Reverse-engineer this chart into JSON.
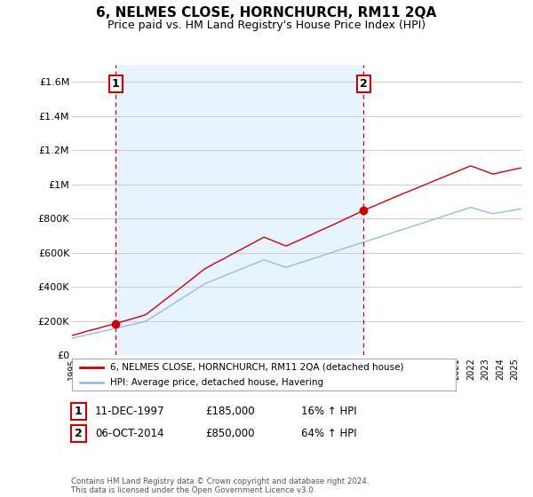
{
  "title": "6, NELMES CLOSE, HORNCHURCH, RM11 2QA",
  "subtitle": "Price paid vs. HM Land Registry's House Price Index (HPI)",
  "title_fontsize": 11,
  "subtitle_fontsize": 9,
  "ylabel_ticks": [
    "£0",
    "£200K",
    "£400K",
    "£600K",
    "£800K",
    "£1M",
    "£1.2M",
    "£1.4M",
    "£1.6M"
  ],
  "ytick_values": [
    0,
    200000,
    400000,
    600000,
    800000,
    1000000,
    1200000,
    1400000,
    1600000
  ],
  "ylim": [
    0,
    1700000
  ],
  "xlim_start": 1995.0,
  "xlim_end": 2025.5,
  "transaction1_x": 1997.95,
  "transaction1_y": 185000,
  "transaction1_label": "1",
  "transaction2_x": 2014.75,
  "transaction2_y": 850000,
  "transaction2_label": "2",
  "legend_line1": "6, NELMES CLOSE, HORNCHURCH, RM11 2QA (detached house)",
  "legend_line2": "HPI: Average price, detached house, Havering",
  "table_row1_num": "1",
  "table_row1_date": "11-DEC-1997",
  "table_row1_price": "£185,000",
  "table_row1_hpi": "16% ↑ HPI",
  "table_row2_num": "2",
  "table_row2_date": "06-OCT-2014",
  "table_row2_price": "£850,000",
  "table_row2_hpi": "64% ↑ HPI",
  "footer": "Contains HM Land Registry data © Crown copyright and database right 2024.\nThis data is licensed under the Open Government Licence v3.0.",
  "red_color": "#cc0000",
  "blue_color": "#99bbdd",
  "shade_color": "#ddeeff",
  "vline_color": "#cc0000",
  "grid_color": "#cccccc",
  "background_color": "#ffffff"
}
